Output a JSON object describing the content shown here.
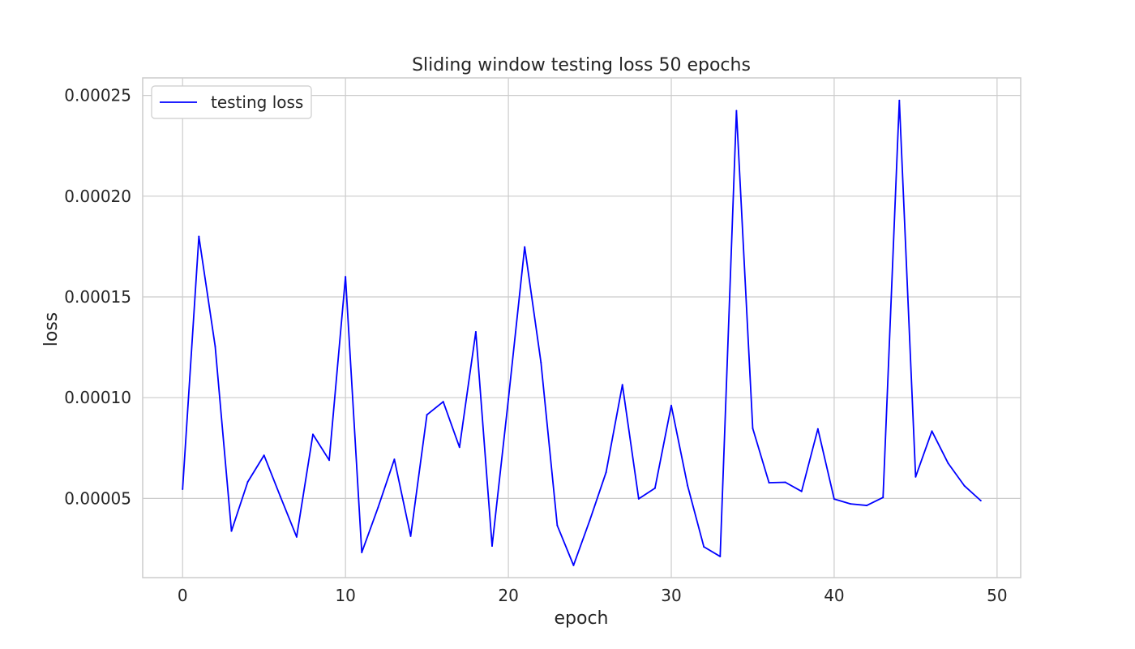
{
  "chart_data": {
    "type": "line",
    "title": "Sliding window testing loss 50 epochs",
    "xlabel": "epoch",
    "ylabel": "loss",
    "xlim": [
      -2.45,
      51.45
    ],
    "ylim": [
      1.07e-05,
      0.0002587
    ],
    "xticks": [
      0,
      10,
      20,
      30,
      40,
      50
    ],
    "xtick_labels": [
      "0",
      "10",
      "20",
      "30",
      "40",
      "50"
    ],
    "yticks": [
      5e-05,
      0.0001,
      0.00015,
      0.0002,
      0.00025
    ],
    "ytick_labels": [
      "0.00005",
      "0.00010",
      "0.00015",
      "0.00020",
      "0.00025"
    ],
    "grid": true,
    "legend_position": "upper left",
    "series": [
      {
        "name": "testing loss",
        "color": "#0000ff",
        "x": [
          0,
          1,
          2,
          3,
          4,
          5,
          6,
          7,
          8,
          9,
          10,
          11,
          12,
          13,
          14,
          15,
          16,
          17,
          18,
          19,
          20,
          21,
          22,
          23,
          24,
          25,
          26,
          27,
          28,
          29,
          30,
          31,
          32,
          33,
          34,
          35,
          36,
          37,
          38,
          39,
          40,
          41,
          42,
          43,
          44,
          45,
          46,
          47,
          48,
          49
        ],
        "y": [
          5.46e-05,
          0.00018,
          0.0001255,
          3.38e-05,
          5.82e-05,
          7.14e-05,
          5.1e-05,
          3.09e-05,
          8.18e-05,
          6.9e-05,
          0.00016,
          2.32e-05,
          4.55e-05,
          6.94e-05,
          3.13e-05,
          9.15e-05,
          9.8e-05,
          7.54e-05,
          0.0001327,
          2.64e-05,
          9.92e-05,
          0.0001748,
          0.0001175,
          3.66e-05,
          1.68e-05,
          3.92e-05,
          6.3e-05,
          0.0001064,
          4.98e-05,
          5.51e-05,
          9.61e-05,
          5.64e-05,
          2.6e-05,
          2.12e-05,
          0.0002424,
          8.48e-05,
          5.78e-05,
          5.8e-05,
          5.35e-05,
          8.45e-05,
          4.97e-05,
          4.73e-05,
          4.65e-05,
          5.05e-05,
          0.0002475,
          6.07e-05,
          8.34e-05,
          6.74e-05,
          5.62e-05,
          4.89e-05
        ]
      }
    ]
  }
}
